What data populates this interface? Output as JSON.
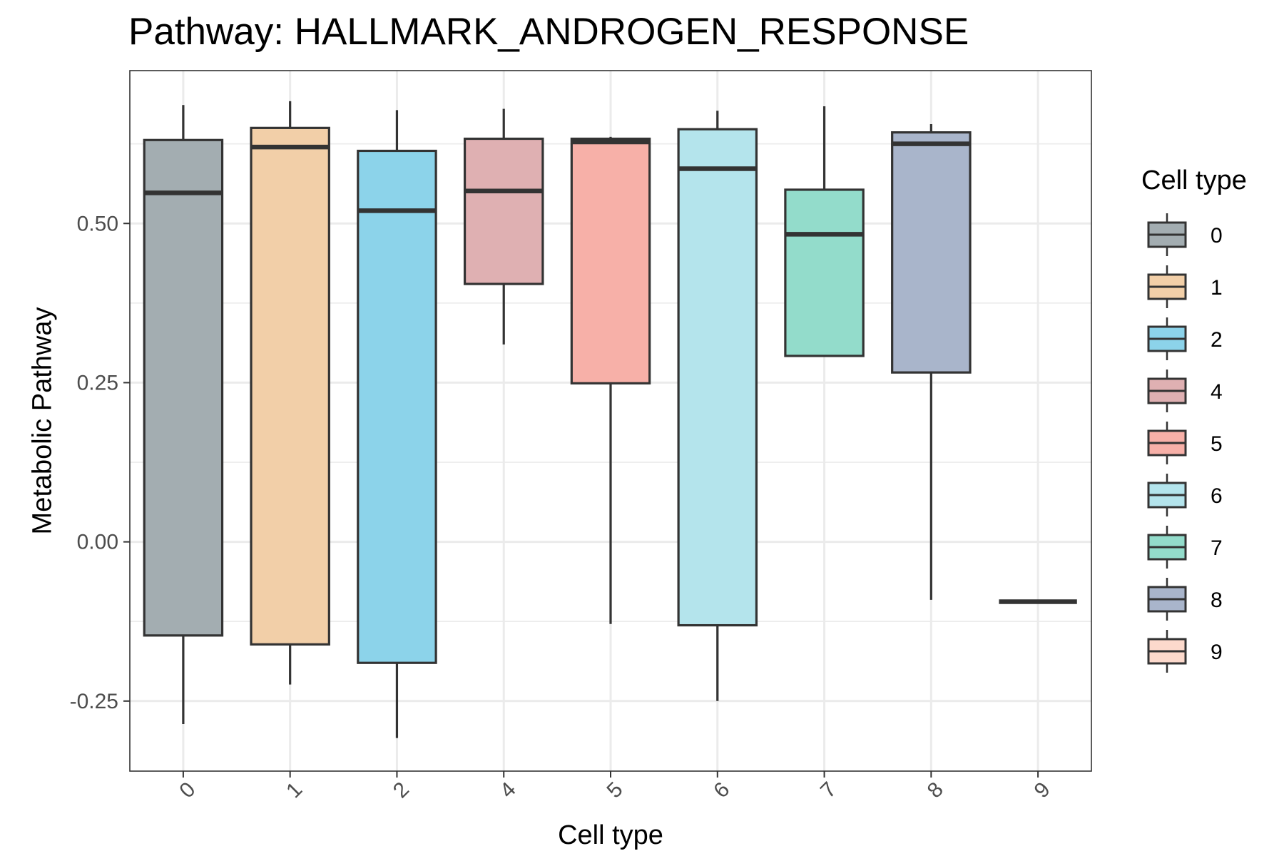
{
  "chart_data": {
    "type": "boxplot",
    "title": "Pathway: HALLMARK_ANDROGEN_RESPONSE",
    "xlabel": "Cell type",
    "ylabel": "Metabolic Pathway",
    "ylim": [
      -0.36,
      0.74
    ],
    "yticks": [
      -0.25,
      0.0,
      0.25,
      0.5
    ],
    "ytick_labels": [
      "-0.25",
      "0.00",
      "0.25",
      "0.50"
    ],
    "grid": true,
    "legend": {
      "title": "Cell type",
      "placement": "right"
    },
    "categories": [
      "0",
      "1",
      "2",
      "4",
      "5",
      "6",
      "7",
      "8",
      "9"
    ],
    "boxes": [
      {
        "category": "0",
        "min": -0.286,
        "q1": -0.147,
        "median": 0.548,
        "q3": 0.631,
        "max": 0.686,
        "color": "#a3adb1"
      },
      {
        "category": "1",
        "min": -0.224,
        "q1": -0.161,
        "median": 0.62,
        "q3": 0.65,
        "max": 0.692,
        "color": "#f2cfa8"
      },
      {
        "category": "2",
        "min": -0.308,
        "q1": -0.19,
        "median": 0.52,
        "q3": 0.614,
        "max": 0.678,
        "color": "#8cd3ea"
      },
      {
        "category": "4",
        "min": 0.31,
        "q1": 0.405,
        "median": 0.551,
        "q3": 0.633,
        "max": 0.68,
        "color": "#dfb0b2"
      },
      {
        "category": "5",
        "min": -0.129,
        "q1": 0.249,
        "median": 0.628,
        "q3": 0.633,
        "max": 0.636,
        "color": "#f7b0a8"
      },
      {
        "category": "6",
        "min": -0.25,
        "q1": -0.131,
        "median": 0.586,
        "q3": 0.648,
        "max": 0.677,
        "color": "#b4e4ec"
      },
      {
        "category": "7",
        "min": 0.292,
        "q1": 0.292,
        "median": 0.483,
        "q3": 0.553,
        "max": 0.684,
        "color": "#93dccb"
      },
      {
        "category": "8",
        "min": -0.091,
        "q1": 0.266,
        "median": 0.625,
        "q3": 0.643,
        "max": 0.656,
        "color": "#a9b5cb"
      },
      {
        "category": "9",
        "min": -0.094,
        "q1": -0.094,
        "median": -0.094,
        "q3": -0.094,
        "max": -0.094,
        "color": "#fcd9cc"
      }
    ]
  }
}
